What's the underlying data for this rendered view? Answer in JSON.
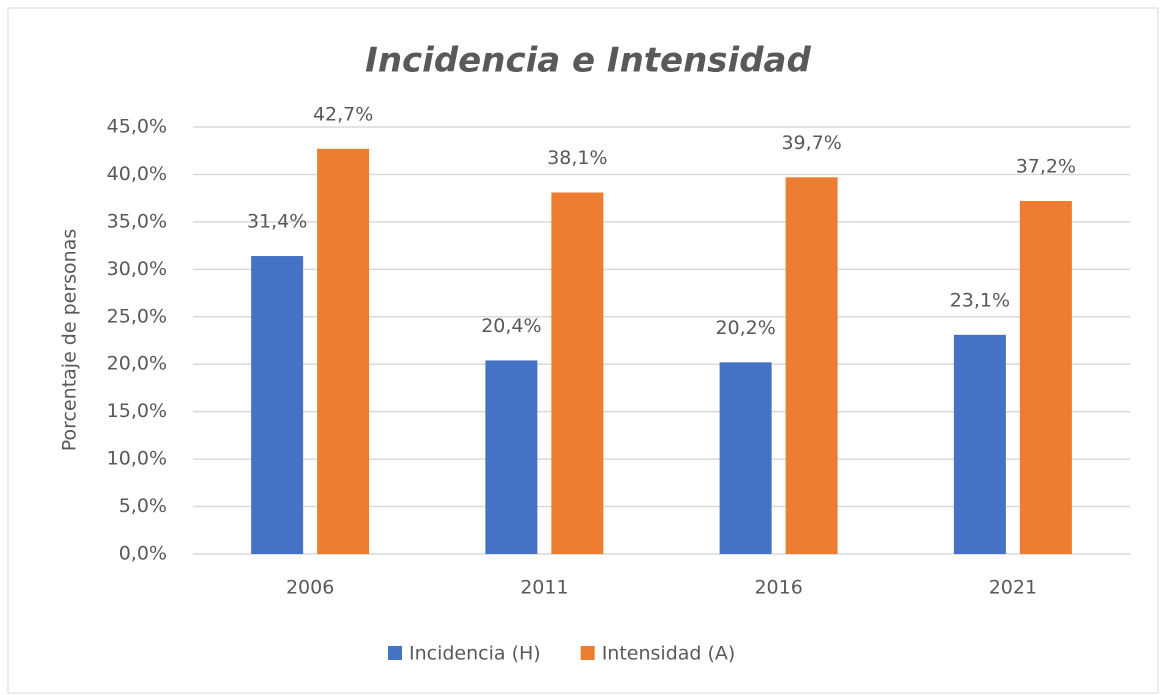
{
  "chart_data": {
    "type": "bar",
    "title": "Incidencia e Intensidad",
    "y_label": "Porcentaje de personas",
    "categories": [
      "2006",
      "2011",
      "2016",
      "2021"
    ],
    "series": [
      {
        "name": "Incidencia (H)",
        "color": "#4472c4",
        "values": [
          31.4,
          20.4,
          20.2,
          23.1
        ],
        "value_labels": [
          "31,4%",
          "20,4%",
          "20,2%",
          "23,1%"
        ]
      },
      {
        "name": "Intensidad (A)",
        "color": "#ed7d31",
        "values": [
          42.7,
          38.1,
          39.7,
          37.2
        ],
        "value_labels": [
          "42,7%",
          "38,1%",
          "39,7%",
          "37,2%"
        ]
      }
    ],
    "ylim": [
      0,
      45
    ],
    "yticks": [
      {
        "value": 0,
        "label": "0,0%"
      },
      {
        "value": 5,
        "label": "5,0%"
      },
      {
        "value": 10,
        "label": "10,0%"
      },
      {
        "value": 15,
        "label": "15,0%"
      },
      {
        "value": 20,
        "label": "20,0%"
      },
      {
        "value": 25,
        "label": "25,0%"
      },
      {
        "value": 30,
        "label": "30,0%"
      },
      {
        "value": 35,
        "label": "35,0%"
      },
      {
        "value": 40,
        "label": "40,0%"
      },
      {
        "value": 45,
        "label": "45,0%"
      }
    ],
    "grid": true,
    "legend": "bottom"
  }
}
